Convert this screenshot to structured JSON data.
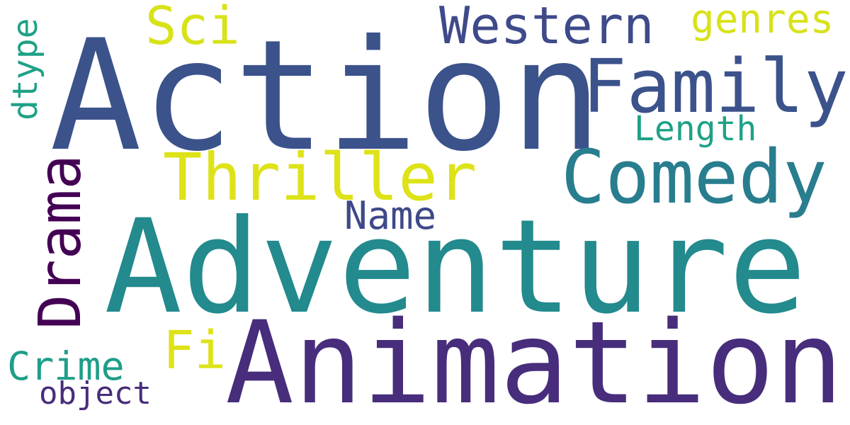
{
  "words": [
    {
      "text": "Action",
      "color": "#3b528b"
    },
    {
      "text": "Adventure",
      "color": "#238a8d"
    },
    {
      "text": "Animation",
      "color": "#472d7b"
    },
    {
      "text": "Family",
      "color": "#3b528b"
    },
    {
      "text": "Comedy",
      "color": "#287d8e"
    },
    {
      "text": "Thriller",
      "color": "#dde318"
    },
    {
      "text": "Western",
      "color": "#3e4a89"
    },
    {
      "text": "Sci",
      "color": "#d8e219"
    },
    {
      "text": "genres",
      "color": "#d8e219"
    },
    {
      "text": "Drama",
      "color": "#440154"
    },
    {
      "text": "Name",
      "color": "#3e4989"
    },
    {
      "text": "Length",
      "color": "#1fa187"
    },
    {
      "text": "dtype",
      "color": "#1fa187"
    },
    {
      "text": "Fi",
      "color": "#dde318"
    },
    {
      "text": "Crime",
      "color": "#1f9e89"
    },
    {
      "text": "object",
      "color": "#472d7b"
    }
  ]
}
